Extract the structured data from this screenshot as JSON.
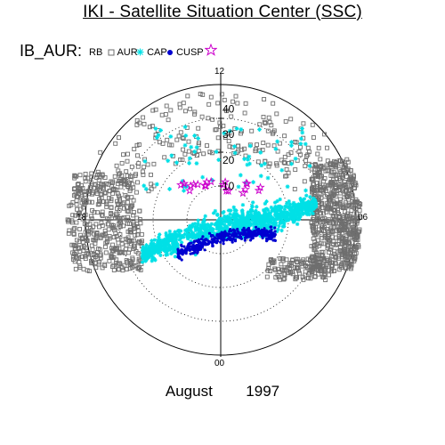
{
  "header": {
    "title": "IKI - Satellite Situation Center (SSC)"
  },
  "legend": {
    "label": "IB_AUR:",
    "items": [
      {
        "name": "RB",
        "symbol": "none",
        "color": "#000000"
      },
      {
        "name": "AUR",
        "symbol": "square",
        "color": "#6e6e6e"
      },
      {
        "name": "CAP",
        "symbol": "asterisk",
        "color": "#00e0e6"
      },
      {
        "name": "CUSP",
        "symbol": "filled-circle",
        "color": "#0000d0"
      },
      {
        "name": "",
        "symbol": "star",
        "color": "#cc00cc"
      }
    ]
  },
  "footer": {
    "month": "August",
    "year": "1997"
  },
  "chart_data": {
    "type": "scatter",
    "projection": "polar (magnetic latitude / local time)",
    "radial_axis": {
      "label_values": [
        "40",
        "30",
        "20",
        "10"
      ],
      "max": 50
    },
    "clock_labels": {
      "top": "12",
      "bottom": "00",
      "left": "18",
      "right": "06"
    },
    "grid": true,
    "series": [
      {
        "name": "AUR",
        "marker": "square",
        "color": "#6e6e6e",
        "region": "auroral oval, dense near 06 and 18 MLT, sparse on dayside"
      },
      {
        "name": "CAP",
        "marker": "asterisk",
        "color": "#00e0e6",
        "region": "polar cap band across nightside; scattered on dayside 10–30"
      },
      {
        "name": "CUSP",
        "marker": "filled-circle",
        "color": "#0000d0",
        "region": "near pole, nightside crescent"
      },
      {
        "name": "",
        "marker": "star",
        "color": "#cc00cc",
        "region": "dayside near 10–15"
      }
    ]
  }
}
